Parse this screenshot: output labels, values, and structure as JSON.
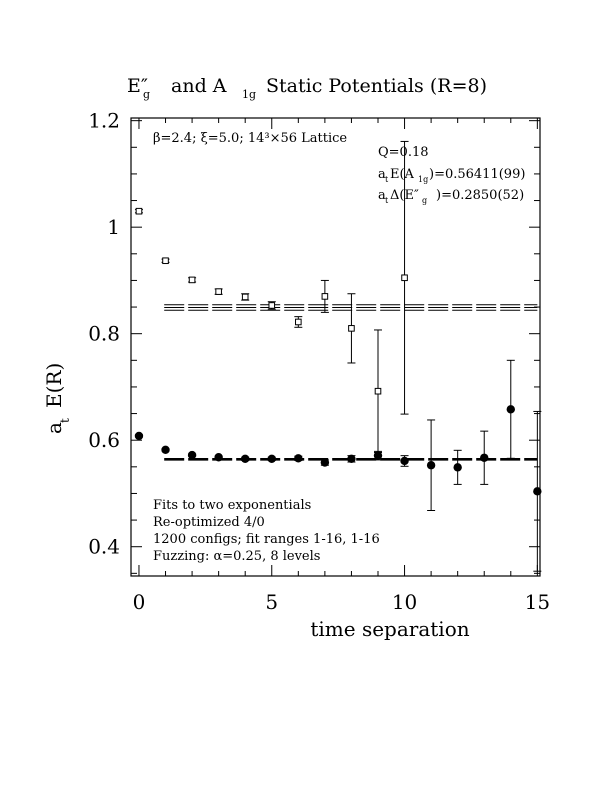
{
  "chart_data": {
    "type": "scatter",
    "title": {
      "main": "E″",
      "sub": "g",
      "rest": "and A",
      "sub2": "1g",
      "tail": "Static Potentials (R=8)"
    },
    "xlabel": "time separation",
    "ylabel": {
      "main": "a",
      "sub": "t",
      "rest": "E(R)"
    },
    "xlim": [
      -0.3,
      15.1
    ],
    "ylim": [
      0.345,
      1.205
    ],
    "xticks": [
      0,
      5,
      10,
      15
    ],
    "xtick_labels": [
      "0",
      "5",
      "10",
      "15"
    ],
    "yticks": [
      0.4,
      0.6,
      0.8,
      1.0,
      1.2
    ],
    "ytick_labels": [
      "0.4",
      "0.6",
      "0.8",
      "1",
      "1.2"
    ],
    "grid": false,
    "annotations": {
      "lattice": "β=2.4; ξ=5.0; 14³×56 Lattice",
      "q": "Q=0.18",
      "a1g": {
        "pre": "a",
        "s1": "t",
        "mid": "E(A",
        "s2": "1g",
        "post": ")=0.56411(99)"
      },
      "eg": {
        "pre": "a",
        "s1": "t",
        "mid": "Δ(E″",
        "s2": "g",
        "post": ")=0.2850(52)"
      },
      "notes": [
        "Fits to two exponentials",
        "Re-optimized 4/0",
        "1200 configs; fit ranges 1-16, 1-16",
        "Fuzzing: α=0.25, 8 levels"
      ]
    },
    "series": [
      {
        "marker": "filled-circle",
        "x": [
          0,
          1,
          2,
          3,
          4,
          5,
          6,
          7,
          8,
          9,
          10,
          11,
          12,
          13,
          14,
          15
        ],
        "y": [
          0.608,
          0.582,
          0.572,
          0.568,
          0.565,
          0.565,
          0.566,
          0.558,
          0.565,
          0.571,
          0.561,
          0.553,
          0.549,
          0.567,
          0.658,
          0.504
        ],
        "err": [
          0.002,
          0.002,
          0.002,
          0.002,
          0.003,
          0.003,
          0.004,
          0.005,
          0.006,
          0.008,
          0.01,
          0.085,
          0.032,
          0.05,
          0.092,
          0.15
        ]
      },
      {
        "marker": "open-square",
        "x": [
          0,
          1,
          2,
          3,
          4,
          5,
          6,
          7,
          8,
          9,
          10
        ],
        "y": [
          1.03,
          0.937,
          0.901,
          0.879,
          0.869,
          0.853,
          0.822,
          0.87,
          0.81,
          0.692,
          0.905
        ],
        "err": [
          0.003,
          0.003,
          0.004,
          0.005,
          0.006,
          0.007,
          0.01,
          0.03,
          0.065,
          0.115,
          0.256
        ]
      }
    ],
    "fit_lines": [
      {
        "level": 0.56411,
        "error": 0.00099,
        "style": "dashed",
        "x": [
          1,
          15
        ]
      },
      {
        "level": 0.84911,
        "error": 0.0052,
        "style": "dashed",
        "x": [
          1,
          15
        ]
      }
    ]
  }
}
